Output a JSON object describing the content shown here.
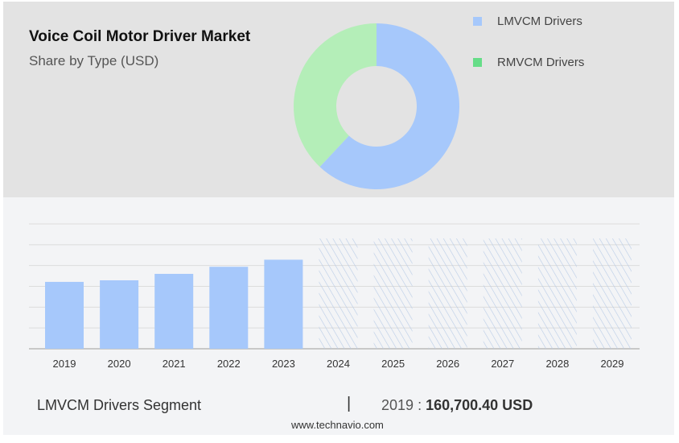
{
  "header": {
    "title": "Voice Coil Motor Driver Market",
    "subtitle": "Share by Type (USD)"
  },
  "chart_data": [
    {
      "type": "pie",
      "variant": "donut",
      "slices": [
        {
          "name": "LMVCM Drivers",
          "value": 62,
          "color": "#a6c8fb"
        },
        {
          "name": "RMVCM Drivers",
          "value": 38,
          "color": "#b4eeb8"
        }
      ],
      "legend_colors": [
        "#a6c8fb",
        "#66dd88"
      ],
      "legend": "right"
    },
    {
      "type": "bar",
      "categories": [
        "2019",
        "2020",
        "2021",
        "2022",
        "2023",
        "2024",
        "2025",
        "2026",
        "2027",
        "2028",
        "2029"
      ],
      "values": [
        160700.4,
        164500,
        180000,
        197000,
        214000,
        null,
        null,
        null,
        null,
        null,
        null
      ],
      "forecast_hatched": [
        "2024",
        "2025",
        "2026",
        "2027",
        "2028",
        "2029"
      ],
      "ylim": [
        0,
        300000
      ],
      "grid": true,
      "bar_color": "#a6c8fb"
    }
  ],
  "footer": {
    "segment": "LMVCM Drivers Segment",
    "separator": "|",
    "year": "2019",
    "colon": ":",
    "value": "160,700.40 USD",
    "site": "www.technavio.com"
  }
}
